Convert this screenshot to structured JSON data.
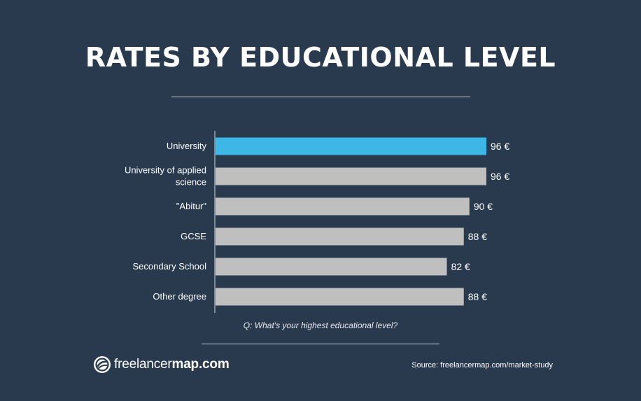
{
  "header": {
    "title": "RATES BY EDUCATIONAL LEVEL"
  },
  "chart_data": {
    "type": "bar",
    "orientation": "horizontal",
    "categories": [
      [
        "University"
      ],
      [
        "University of applied",
        "science"
      ],
      [
        "\"Abitur\""
      ],
      [
        "GCSE"
      ],
      [
        "Secondary School"
      ],
      [
        "Other degree"
      ]
    ],
    "values": [
      96,
      96,
      90,
      88,
      82,
      88
    ],
    "value_labels": [
      "96 €",
      "96 €",
      "90 €",
      "88 €",
      "82 €",
      "88 €"
    ],
    "unit": "€",
    "bar_colors": [
      "#3db7e6",
      "#bfbfbf",
      "#bfbfbf",
      "#bfbfbf",
      "#bfbfbf",
      "#bfbfbf"
    ],
    "grid": false,
    "legend": "none"
  },
  "footer": {
    "question": "Q: What's your highest educational level?",
    "logo_light": "freelancer",
    "logo_bold": "map.com",
    "source": "Source: freelancermap.com/market-study"
  },
  "colors": {
    "background": "#293a4f",
    "highlight_bar": "#3db7e6",
    "default_bar": "#bfbfbf",
    "axis": "#d0d5db"
  }
}
